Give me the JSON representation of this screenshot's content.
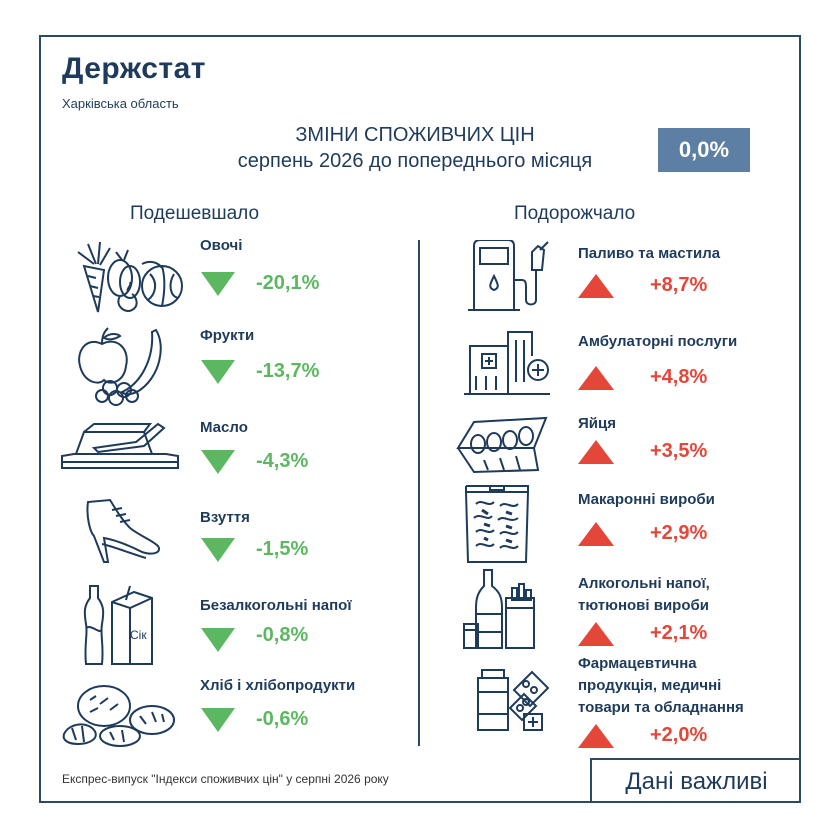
{
  "header": {
    "brand": "Держстат",
    "region": "Харківська область",
    "title": "ЗМІНИ СПОЖИВЧИХ ЦІН",
    "subtitle": "серпень 2026 до попереднього місяця",
    "total_change": "0,0%"
  },
  "colors": {
    "down": "#5cb860",
    "up": "#e4463a",
    "navy": "#1e3b5b",
    "box": "#5c7fa3"
  },
  "cheaper": {
    "heading": "Подешевшало",
    "items": [
      {
        "label": "Овочі",
        "value": "-20,1%",
        "icon": "vegetables-icon"
      },
      {
        "label": "Фрукти",
        "value": "-13,7%",
        "icon": "fruits-icon"
      },
      {
        "label": "Масло",
        "value": "-4,3%",
        "icon": "butter-icon"
      },
      {
        "label": "Взуття",
        "value": "-1,5%",
        "icon": "shoes-icon"
      },
      {
        "label": "Безалкогольні напої",
        "value": "-0,8%",
        "icon": "soft-drinks-icon"
      },
      {
        "label": "Хліб і хлібопродукти",
        "value": "-0,6%",
        "icon": "bread-icon"
      }
    ]
  },
  "pricier": {
    "heading": "Подорожчало",
    "items": [
      {
        "label": "Паливо та мастила",
        "value": "+8,7%",
        "icon": "fuel-pump-icon"
      },
      {
        "label": "Амбулаторні послуги",
        "value": "+4,8%",
        "icon": "hospital-icon"
      },
      {
        "label": "Яйця",
        "value": "+3,5%",
        "icon": "eggs-icon"
      },
      {
        "label": "Макаронні вироби",
        "value": "+2,9%",
        "icon": "pasta-icon"
      },
      {
        "label_line1": "Алкогольні напої,",
        "label_line2": "тютюнові вироби",
        "value": "+2,1%",
        "icon": "alcohol-tobacco-icon"
      },
      {
        "label_line1": "Фармацевтична",
        "label_line2": "продукція, медичні",
        "label_line3": "товари та обладнання",
        "value": "+2,0%",
        "icon": "pharmacy-icon"
      }
    ]
  },
  "soft_drinks_box_text": "Сік",
  "footer": {
    "source": "Експрес-випуск \"Індекси споживчих цін\" у серпні 2026 року",
    "badge": "Дані важливі"
  }
}
